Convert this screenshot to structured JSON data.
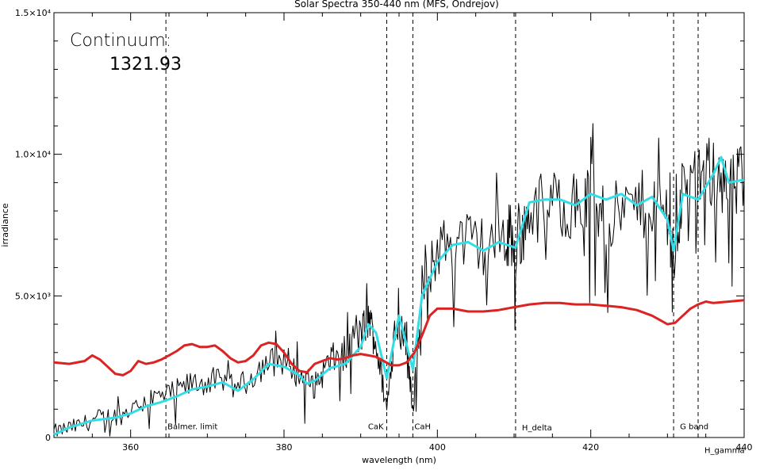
{
  "chart_data": {
    "type": "line",
    "title": "Solar Spectra 350-440 nm (MFS, Ondrejov)",
    "xlabel": "wavelength (nm)",
    "ylabel": "irradiance",
    "xlim": [
      350,
      440
    ],
    "ylim": [
      0,
      15000
    ],
    "x_ticks": [
      {
        "value": 360,
        "label": "360"
      },
      {
        "value": 380,
        "label": "380"
      },
      {
        "value": 400,
        "label": "400"
      },
      {
        "value": 420,
        "label": "420"
      },
      {
        "value": 440,
        "label": "440"
      }
    ],
    "y_ticks": [
      {
        "value": 0,
        "label": "0"
      },
      {
        "value": 5000,
        "label": "5.0×10³"
      },
      {
        "value": 10000,
        "label": "1.0×10⁴"
      },
      {
        "value": 15000,
        "label": "1.5×10⁴"
      }
    ],
    "annotation": {
      "label": "Continuum:",
      "value": "1321.93"
    },
    "reference_lines": [
      {
        "x": 364.6,
        "label": "Balmer. limit",
        "label_y": 300
      },
      {
        "x": 393.4,
        "label": "CaK",
        "label_y": 300
      },
      {
        "x": 396.8,
        "label": "CaH",
        "label_y": 300
      },
      {
        "x": 410.2,
        "label": "H_delta",
        "label_y": 250
      },
      {
        "x": 430.8,
        "label": "G band",
        "label_y": 300
      },
      {
        "x": 434.0,
        "label": "H_gamma",
        "label_y": -550
      }
    ],
    "series": [
      {
        "color": "#000000",
        "x": [
          350,
          353,
          356,
          359,
          362,
          365,
          368,
          371,
          374,
          377,
          380,
          382,
          384,
          386,
          388,
          390,
          391,
          392,
          393.4,
          394.5,
          396,
          396.8,
          398,
          400,
          403,
          406,
          409,
          410.2,
          412,
          415,
          418,
          420,
          422,
          425,
          428,
          430,
          430.8,
          432,
          434,
          436,
          438,
          440
        ],
        "y": [
          200,
          400,
          700,
          800,
          1300,
          1500,
          1900,
          2000,
          1700,
          2500,
          2800,
          2200,
          1800,
          2700,
          3000,
          3600,
          4200,
          3300,
          1000,
          4000,
          3500,
          1000,
          4800,
          6700,
          7000,
          6800,
          7100,
          6500,
          8000,
          8300,
          8200,
          8400,
          7700,
          8100,
          8300,
          8000,
          6200,
          8900,
          8800,
          9500,
          8600,
          9200
        ]
      },
      {
        "color": "#33dde6",
        "x": [
          350,
          352,
          355,
          358,
          360,
          362,
          364,
          366,
          368,
          370,
          372,
          374,
          376,
          378,
          380,
          382,
          383,
          384,
          386,
          388,
          390,
          391,
          392,
          393.4,
          395,
          396.8,
          398,
          400,
          402,
          404,
          406,
          408,
          410.2,
          412,
          414,
          416,
          418,
          420,
          422,
          424,
          426,
          428,
          430,
          430.8,
          432,
          434,
          436,
          437,
          438,
          440
        ],
        "y": [
          100,
          350,
          600,
          700,
          850,
          1100,
          1250,
          1450,
          1700,
          1800,
          1950,
          1650,
          2050,
          2600,
          2500,
          2200,
          1900,
          2000,
          2450,
          2600,
          3200,
          4000,
          3700,
          2100,
          4300,
          2400,
          5000,
          6200,
          6800,
          6900,
          6600,
          6900,
          6700,
          8300,
          8400,
          8400,
          8200,
          8600,
          8400,
          8600,
          8200,
          8500,
          7700,
          6600,
          8600,
          8400,
          9300,
          9900,
          9000,
          9100
        ]
      },
      {
        "color": "#dd2222",
        "x": [
          350,
          352,
          354,
          355,
          356,
          357,
          358,
          359,
          360,
          361,
          362,
          363,
          364,
          365,
          366,
          367,
          368,
          369,
          370,
          371,
          372,
          373,
          374,
          375,
          376,
          377,
          378,
          379,
          380,
          381,
          382,
          383,
          384,
          385,
          386,
          387,
          388,
          389,
          390,
          391,
          392,
          393,
          394,
          395,
          396,
          397,
          398,
          399,
          400,
          402,
          404,
          406,
          408,
          410,
          412,
          414,
          416,
          418,
          420,
          422,
          424,
          426,
          428,
          429,
          430,
          431,
          432,
          433,
          434,
          435,
          436,
          438,
          440
        ],
        "y": [
          2650,
          2600,
          2700,
          2900,
          2750,
          2500,
          2250,
          2200,
          2350,
          2700,
          2600,
          2650,
          2750,
          2900,
          3050,
          3250,
          3300,
          3200,
          3200,
          3250,
          3050,
          2800,
          2650,
          2700,
          2900,
          3250,
          3350,
          3300,
          3000,
          2600,
          2350,
          2300,
          2600,
          2700,
          2800,
          2750,
          2800,
          2900,
          2950,
          2900,
          2850,
          2700,
          2550,
          2550,
          2650,
          3000,
          3600,
          4300,
          4550,
          4550,
          4450,
          4450,
          4500,
          4600,
          4700,
          4750,
          4750,
          4700,
          4700,
          4650,
          4600,
          4500,
          4300,
          4150,
          4000,
          4050,
          4300,
          4550,
          4700,
          4800,
          4750,
          4800,
          4850
        ]
      }
    ]
  }
}
